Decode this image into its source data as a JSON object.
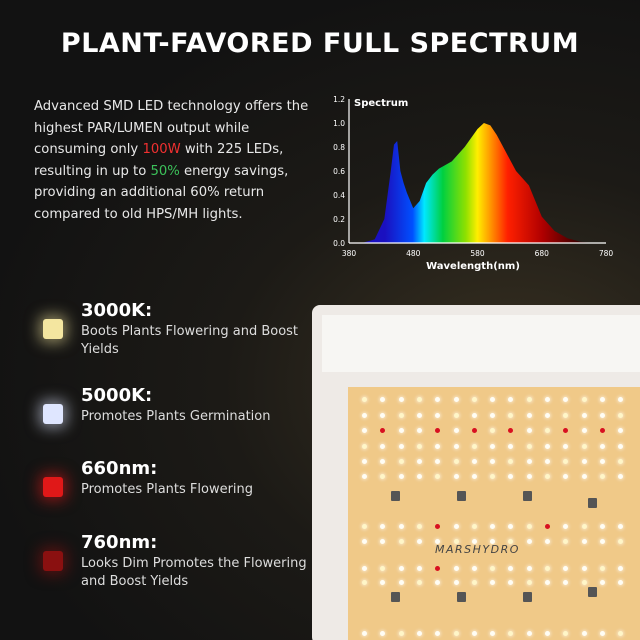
{
  "title": "PLANT-FAVORED FULL SPECTRUM",
  "intro": {
    "p1": "Advanced SMD LED technology offers the highest PAR/LUMEN output while consuming only ",
    "power": "100W",
    "p2": " with 225 LEDs, resulting in up to ",
    "savings": "50%",
    "p3": " energy savings, providing an additional 60% return compared to old HPS/MH lights.",
    "power_color": "#f03030",
    "savings_color": "#3cc15a"
  },
  "chart_data": {
    "type": "area",
    "title": "Spectrum",
    "xlabel": "Wavelength(nm)",
    "ylabel": "",
    "xlim": [
      380,
      780
    ],
    "ylim": [
      0,
      1.2
    ],
    "xticks": [
      "380",
      "480",
      "580",
      "680",
      "780"
    ],
    "yticks": [
      "0.0",
      "0.2",
      "0.4",
      "0.6",
      "0.8",
      "1.0",
      "1.2"
    ],
    "x": [
      400,
      420,
      435,
      445,
      450,
      455,
      460,
      465,
      470,
      480,
      490,
      500,
      510,
      520,
      540,
      560,
      580,
      590,
      600,
      610,
      620,
      640,
      660,
      670,
      680,
      700,
      720,
      740,
      760
    ],
    "y": [
      0,
      0.03,
      0.2,
      0.6,
      0.82,
      0.85,
      0.6,
      0.5,
      0.42,
      0.29,
      0.35,
      0.5,
      0.57,
      0.62,
      0.68,
      0.8,
      0.95,
      1.0,
      0.98,
      0.9,
      0.8,
      0.6,
      0.48,
      0.35,
      0.22,
      0.1,
      0.04,
      0.01,
      0
    ],
    "fill": "spectral gradient by wavelength",
    "grid": false
  },
  "features": [
    {
      "title": "3000K:",
      "desc": "Boots Plants Flowering and Boost Yields",
      "color": "#f4e6a0"
    },
    {
      "title": "5000K:",
      "desc": "Promotes Plants Germination",
      "color": "#dfe6ff"
    },
    {
      "title": "660nm:",
      "desc": "Promotes Plants Flowering",
      "color": "#e01818"
    },
    {
      "title": "760nm:",
      "desc": "Looks Dim Promotes the Flowering and Boost Yields",
      "color": "#8a1010"
    }
  ],
  "product": {
    "brand_logo": "MARSHYDRO"
  }
}
